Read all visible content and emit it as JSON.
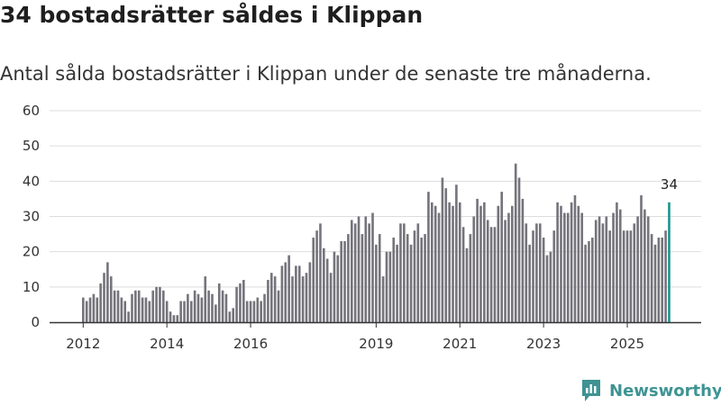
{
  "title": "34 bostadsrätter såldes i Klippan",
  "subtitle": "Antal sålda bostadsrätter i Klippan under de senaste tre månaderna.",
  "brand": {
    "name": "Newsworthy",
    "icon": "newsworthy-logo-icon"
  },
  "colors": {
    "bar": "#75737b",
    "highlight": "#19948f",
    "grid": "#dddddd",
    "axis": "#333333",
    "brand": "#3f9393"
  },
  "chart_data": {
    "type": "bar",
    "title": "34 bostadsrätter såldes i Klippan",
    "xlabel": "",
    "ylabel": "",
    "ylim": [
      0,
      60
    ],
    "yticks": [
      "0",
      "10",
      "20",
      "30",
      "40",
      "50",
      "60"
    ],
    "grid": true,
    "x_start": "2012-01",
    "xticks": [
      {
        "label": "2012",
        "index": 0
      },
      {
        "label": "2014",
        "index": 24
      },
      {
        "label": "2016",
        "index": 48
      },
      {
        "label": "2019",
        "index": 84
      },
      {
        "label": "2021",
        "index": 108
      },
      {
        "label": "2023",
        "index": 132
      },
      {
        "label": "2025",
        "index": 156
      }
    ],
    "series": [
      {
        "name": "Antal sålda bostadsrätter (rullande tre månader)",
        "values": [
          7,
          6,
          7,
          8,
          7,
          11,
          14,
          17,
          13,
          9,
          9,
          7,
          6,
          3,
          8,
          9,
          9,
          7,
          7,
          6,
          9,
          10,
          10,
          9,
          6,
          3,
          2,
          2,
          6,
          6,
          8,
          6,
          9,
          8,
          7,
          13,
          9,
          8,
          5,
          11,
          9,
          8,
          3,
          4,
          10,
          11,
          12,
          6,
          6,
          6,
          7,
          6,
          8,
          12,
          14,
          13,
          9,
          16,
          17,
          19,
          13,
          16,
          16,
          13,
          14,
          17,
          24,
          26,
          28,
          21,
          18,
          14,
          20,
          19,
          23,
          23,
          25,
          29,
          28,
          30,
          25,
          30,
          28,
          31,
          22,
          25,
          13,
          20,
          20,
          24,
          22,
          28,
          28,
          25,
          22,
          26,
          28,
          24,
          25,
          37,
          34,
          33,
          31,
          41,
          38,
          34,
          33,
          39,
          34,
          27,
          21,
          25,
          30,
          35,
          33,
          34,
          29,
          27,
          27,
          33,
          37,
          29,
          31,
          33,
          45,
          41,
          35,
          28,
          22,
          26,
          28,
          28,
          24,
          19,
          20,
          26,
          34,
          33,
          31,
          31,
          34,
          36,
          33,
          31,
          22,
          23,
          24,
          29,
          30,
          28,
          30,
          26,
          31,
          34,
          32,
          26,
          26,
          26,
          28,
          30,
          36,
          32,
          30,
          25,
          22,
          24,
          24,
          26,
          34
        ]
      }
    ],
    "highlight": {
      "index": 168,
      "label": "34",
      "value": 34
    }
  }
}
